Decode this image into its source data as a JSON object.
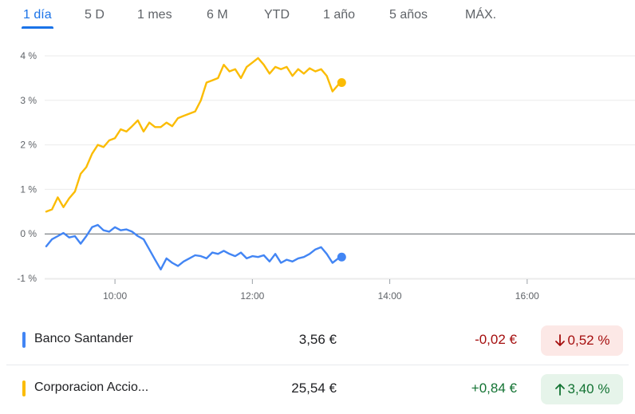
{
  "tabs": [
    {
      "label": "1 día",
      "active": true
    },
    {
      "label": "5 D",
      "active": false
    },
    {
      "label": "1 mes",
      "active": false
    },
    {
      "label": "6 M",
      "active": false
    },
    {
      "label": "YTD",
      "active": false
    },
    {
      "label": "1 año",
      "active": false
    },
    {
      "label": "5 años",
      "active": false
    },
    {
      "label": "MÁX.",
      "active": false
    }
  ],
  "chart_data": {
    "type": "line",
    "y_ticks": [
      "4 %",
      "3 %",
      "2 %",
      "1 %",
      "0 %",
      "-1 %"
    ],
    "x_ticks": [
      "10:00",
      "12:00",
      "14:00",
      "16:00"
    ],
    "xlim": [
      "09:00",
      "17:30"
    ],
    "ylim": [
      -1,
      4
    ],
    "grid": true,
    "baseline": 0,
    "series": [
      {
        "name": "Corporacion Accio...",
        "color": "#fbbc04",
        "points": [
          [
            "09:00",
            0.5
          ],
          [
            "09:05",
            0.55
          ],
          [
            "09:10",
            0.82
          ],
          [
            "09:15",
            0.6
          ],
          [
            "09:20",
            0.8
          ],
          [
            "09:25",
            0.95
          ],
          [
            "09:30",
            1.35
          ],
          [
            "09:35",
            1.5
          ],
          [
            "09:40",
            1.8
          ],
          [
            "09:45",
            2.0
          ],
          [
            "09:50",
            1.95
          ],
          [
            "09:55",
            2.1
          ],
          [
            "10:00",
            2.15
          ],
          [
            "10:05",
            2.35
          ],
          [
            "10:10",
            2.3
          ],
          [
            "10:15",
            2.42
          ],
          [
            "10:20",
            2.55
          ],
          [
            "10:25",
            2.3
          ],
          [
            "10:30",
            2.5
          ],
          [
            "10:35",
            2.4
          ],
          [
            "10:40",
            2.4
          ],
          [
            "10:45",
            2.5
          ],
          [
            "10:50",
            2.42
          ],
          [
            "10:55",
            2.6
          ],
          [
            "11:00",
            2.65
          ],
          [
            "11:05",
            2.7
          ],
          [
            "11:10",
            2.75
          ],
          [
            "11:15",
            3.0
          ],
          [
            "11:20",
            3.4
          ],
          [
            "11:25",
            3.45
          ],
          [
            "11:30",
            3.5
          ],
          [
            "11:35",
            3.8
          ],
          [
            "11:40",
            3.65
          ],
          [
            "11:45",
            3.7
          ],
          [
            "11:50",
            3.5
          ],
          [
            "11:55",
            3.75
          ],
          [
            "12:00",
            3.85
          ],
          [
            "12:05",
            3.95
          ],
          [
            "12:10",
            3.8
          ],
          [
            "12:15",
            3.6
          ],
          [
            "12:20",
            3.75
          ],
          [
            "12:25",
            3.7
          ],
          [
            "12:30",
            3.75
          ],
          [
            "12:35",
            3.55
          ],
          [
            "12:40",
            3.7
          ],
          [
            "12:45",
            3.6
          ],
          [
            "12:50",
            3.72
          ],
          [
            "12:55",
            3.65
          ],
          [
            "13:00",
            3.7
          ],
          [
            "13:05",
            3.55
          ],
          [
            "13:10",
            3.2
          ],
          [
            "13:15",
            3.35
          ],
          [
            "13:18",
            3.4
          ]
        ]
      },
      {
        "name": "Banco Santander",
        "color": "#4285f4",
        "points": [
          [
            "09:00",
            -0.28
          ],
          [
            "09:05",
            -0.12
          ],
          [
            "09:10",
            -0.05
          ],
          [
            "09:15",
            0.02
          ],
          [
            "09:20",
            -0.08
          ],
          [
            "09:25",
            -0.05
          ],
          [
            "09:30",
            -0.22
          ],
          [
            "09:35",
            -0.05
          ],
          [
            "09:40",
            0.15
          ],
          [
            "09:45",
            0.2
          ],
          [
            "09:50",
            0.08
          ],
          [
            "09:55",
            0.05
          ],
          [
            "10:00",
            0.15
          ],
          [
            "10:05",
            0.08
          ],
          [
            "10:10",
            0.1
          ],
          [
            "10:15",
            0.05
          ],
          [
            "10:20",
            -0.05
          ],
          [
            "10:25",
            -0.12
          ],
          [
            "10:30",
            -0.35
          ],
          [
            "10:35",
            -0.58
          ],
          [
            "10:40",
            -0.8
          ],
          [
            "10:45",
            -0.55
          ],
          [
            "10:50",
            -0.65
          ],
          [
            "10:55",
            -0.72
          ],
          [
            "11:00",
            -0.62
          ],
          [
            "11:05",
            -0.55
          ],
          [
            "11:10",
            -0.48
          ],
          [
            "11:15",
            -0.5
          ],
          [
            "11:20",
            -0.55
          ],
          [
            "11:25",
            -0.42
          ],
          [
            "11:30",
            -0.45
          ],
          [
            "11:35",
            -0.38
          ],
          [
            "11:40",
            -0.45
          ],
          [
            "11:45",
            -0.5
          ],
          [
            "11:50",
            -0.42
          ],
          [
            "11:55",
            -0.55
          ],
          [
            "12:00",
            -0.5
          ],
          [
            "12:05",
            -0.52
          ],
          [
            "12:10",
            -0.48
          ],
          [
            "12:15",
            -0.62
          ],
          [
            "12:20",
            -0.45
          ],
          [
            "12:25",
            -0.65
          ],
          [
            "12:30",
            -0.58
          ],
          [
            "12:35",
            -0.62
          ],
          [
            "12:40",
            -0.55
          ],
          [
            "12:45",
            -0.52
          ],
          [
            "12:50",
            -0.45
          ],
          [
            "12:55",
            -0.35
          ],
          [
            "13:00",
            -0.3
          ],
          [
            "13:05",
            -0.45
          ],
          [
            "13:10",
            -0.65
          ],
          [
            "13:15",
            -0.55
          ],
          [
            "13:18",
            -0.52
          ]
        ]
      }
    ]
  },
  "rows": [
    {
      "name": "Banco Santander",
      "price": "3,56 €",
      "change": "-0,02 €",
      "pct": "0,52 %",
      "direction": "down",
      "color": "#4285f4"
    },
    {
      "name": "Corporacion Accio...",
      "price": "25,54 €",
      "change": "+0,84 €",
      "pct": "3,40 %",
      "direction": "up",
      "color": "#fbbc04"
    }
  ],
  "icons": {
    "down": "arrow-down-icon",
    "up": "arrow-up-icon"
  }
}
